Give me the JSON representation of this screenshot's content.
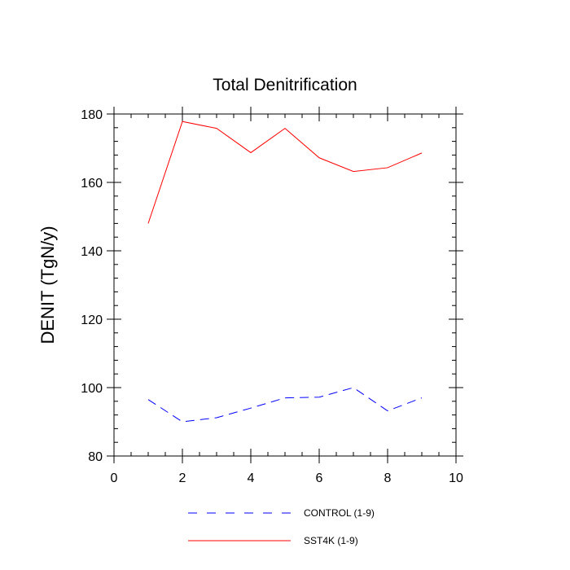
{
  "chart_data": {
    "type": "line",
    "title": "Total Denitrification",
    "xlabel": "",
    "ylabel": "DENIT  (TgN/y)",
    "xlim": [
      0,
      10
    ],
    "ylim": [
      80,
      180
    ],
    "xticks": [
      0,
      2,
      4,
      6,
      8,
      10
    ],
    "yticks": [
      80,
      100,
      120,
      140,
      160,
      180
    ],
    "grid": false,
    "legend_position": "bottom",
    "x": [
      1,
      2,
      3,
      4,
      5,
      6,
      7,
      8,
      9
    ],
    "series": [
      {
        "name": "CONTROL (1-9)",
        "color": "#0000ff",
        "dash": "dashed",
        "values": [
          96.5,
          90.0,
          91.2,
          94.0,
          97.0,
          97.2,
          100.0,
          93.2,
          97.0
        ]
      },
      {
        "name": "SST4K (1-9)",
        "color": "#ff0000",
        "dash": "solid",
        "values": [
          148.0,
          177.8,
          175.8,
          168.7,
          175.8,
          167.2,
          163.2,
          164.3,
          168.6
        ]
      }
    ]
  }
}
